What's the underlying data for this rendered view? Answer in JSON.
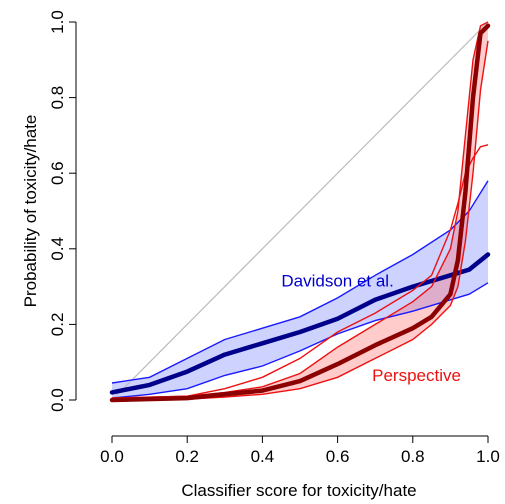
{
  "chart_data": {
    "type": "line",
    "title": "",
    "xlabel": "Classifier score for toxicity/hate",
    "ylabel": "Probability of toxicity/hate",
    "xlim": [
      0,
      1
    ],
    "ylim": [
      0,
      1
    ],
    "xticks": [
      "0.0",
      "0.2",
      "0.4",
      "0.6",
      "0.8",
      "1.0"
    ],
    "yticks": [
      "0.0",
      "0.2",
      "0.4",
      "0.6",
      "0.8",
      "1.0"
    ],
    "grid": false,
    "reference_line": {
      "x": [
        0,
        1
      ],
      "y": [
        0,
        1
      ],
      "color": "#bbbbbb"
    },
    "series": [
      {
        "name": "Davidson et al.",
        "color": "#00008b",
        "band_color": "#6f7fff",
        "bound_color": "#1a1aff",
        "x": [
          0.0,
          0.1,
          0.2,
          0.3,
          0.4,
          0.5,
          0.6,
          0.7,
          0.8,
          0.9,
          0.95,
          1.0
        ],
        "y": [
          0.02,
          0.04,
          0.075,
          0.12,
          0.15,
          0.18,
          0.215,
          0.265,
          0.3,
          0.33,
          0.345,
          0.385
        ],
        "upper": [
          0.045,
          0.06,
          0.11,
          0.16,
          0.19,
          0.22,
          0.27,
          0.33,
          0.385,
          0.45,
          0.5,
          0.58
        ],
        "lower": [
          0.005,
          0.015,
          0.03,
          0.065,
          0.09,
          0.13,
          0.175,
          0.21,
          0.235,
          0.265,
          0.28,
          0.31
        ]
      },
      {
        "name": "Perspective",
        "color": "#8b0000",
        "band_color": "#ff6a6a",
        "bound_color": "#ee1111",
        "x": [
          0.0,
          0.2,
          0.3,
          0.4,
          0.5,
          0.6,
          0.7,
          0.8,
          0.85,
          0.9,
          0.92,
          0.94,
          0.96,
          0.98,
          1.0
        ],
        "y": [
          0.0,
          0.005,
          0.015,
          0.025,
          0.05,
          0.095,
          0.145,
          0.19,
          0.22,
          0.28,
          0.37,
          0.55,
          0.8,
          0.97,
          0.99
        ],
        "upper": [
          0.005,
          0.01,
          0.02,
          0.035,
          0.07,
          0.14,
          0.2,
          0.26,
          0.3,
          0.4,
          0.5,
          0.7,
          0.9,
          0.99,
          1.0
        ],
        "lower": [
          0.0,
          0.002,
          0.008,
          0.015,
          0.03,
          0.06,
          0.11,
          0.16,
          0.2,
          0.25,
          0.3,
          0.42,
          0.6,
          0.82,
          0.95
        ],
        "outer_upper": [
          0.005,
          0.01,
          0.03,
          0.06,
          0.11,
          0.18,
          0.23,
          0.29,
          0.33,
          0.45,
          0.52,
          0.6,
          0.64,
          0.67,
          0.675
        ]
      }
    ],
    "annotations": [
      {
        "text": "Davidson et al.",
        "series": "Davidson et al.",
        "color": "#0000cc",
        "x": 0.6,
        "y": 0.3
      },
      {
        "text": "Perspective",
        "series": "Perspective",
        "color": "#ee1111",
        "x": 0.81,
        "y": 0.05
      }
    ]
  }
}
